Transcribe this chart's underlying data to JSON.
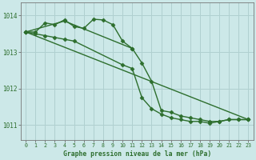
{
  "background_color": "#cce8e8",
  "grid_color": "#b0d0d0",
  "line_color": "#2d6e2d",
  "marker_color": "#2d6e2d",
  "xlabel": "Graphe pression niveau de la mer (hPa)",
  "ylim": [
    1010.6,
    1014.35
  ],
  "xlim": [
    -0.5,
    23.5
  ],
  "yticks": [
    1011,
    1012,
    1013,
    1014
  ],
  "xticks": [
    0,
    1,
    2,
    3,
    4,
    5,
    6,
    7,
    8,
    9,
    10,
    11,
    12,
    13,
    14,
    15,
    16,
    17,
    18,
    19,
    20,
    21,
    22,
    23
  ],
  "series": [
    {
      "x": [
        0,
        1,
        2,
        3,
        4,
        5,
        6,
        7,
        8,
        9,
        10,
        11
      ],
      "y": [
        1013.55,
        1013.55,
        1013.8,
        1013.75,
        1013.88,
        1013.7,
        1013.65,
        1013.9,
        1013.88,
        1013.75,
        1013.3,
        1013.1
      ],
      "marker": "D",
      "markersize": 2.5,
      "linewidth": 1.0
    },
    {
      "x": [
        0,
        4,
        11,
        12,
        13,
        14,
        15,
        16,
        17,
        18,
        19,
        20,
        21,
        22,
        23
      ],
      "y": [
        1013.55,
        1013.85,
        1013.1,
        1012.7,
        1012.2,
        1011.4,
        1011.35,
        1011.25,
        1011.2,
        1011.15,
        1011.1,
        1011.1,
        1011.15,
        1011.15,
        1011.15
      ],
      "marker": "D",
      "markersize": 2.5,
      "linewidth": 1.0
    },
    {
      "x": [
        0,
        1,
        2,
        3,
        4,
        5,
        10,
        11,
        12,
        13,
        14,
        15,
        16,
        17,
        18,
        19,
        20,
        21,
        22,
        23
      ],
      "y": [
        1013.55,
        1013.5,
        1013.45,
        1013.4,
        1013.35,
        1013.3,
        1012.65,
        1012.55,
        1011.75,
        1011.45,
        1011.3,
        1011.2,
        1011.15,
        1011.1,
        1011.1,
        1011.05,
        1011.1,
        1011.15,
        1011.15,
        1011.15
      ],
      "marker": "D",
      "markersize": 2.5,
      "linewidth": 1.0
    },
    {
      "x": [
        0,
        23
      ],
      "y": [
        1013.55,
        1011.15
      ],
      "marker": "D",
      "markersize": 2.5,
      "linewidth": 1.0
    }
  ]
}
